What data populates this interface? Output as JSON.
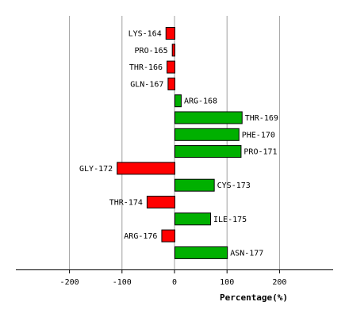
{
  "chart_data": {
    "type": "bar",
    "orientation": "horizontal",
    "categories": [
      "LYS-164",
      "PRO-165",
      "THR-166",
      "GLN-167",
      "ARG-168",
      "THR-169",
      "PHE-170",
      "PRO-171",
      "GLY-172",
      "CYS-173",
      "THR-174",
      "ILE-175",
      "ARG-176",
      "ASN-177"
    ],
    "values": [
      -17,
      -5,
      -15,
      -13,
      12,
      128,
      122,
      126,
      -110,
      75,
      -53,
      68,
      -25,
      100
    ],
    "xlabel": "Percentage(%)",
    "ylabel": "",
    "xlim": [
      -300,
      300
    ],
    "xticks": [
      -200,
      -100,
      0,
      100,
      200
    ],
    "xtick_labels": [
      "-200",
      "-100",
      "0",
      "100",
      "200"
    ],
    "grid": "vertical",
    "colors": {
      "positive": "#00b000",
      "negative": "#ff0000",
      "grid": "#a0a0a0",
      "axis": "#000000"
    }
  }
}
